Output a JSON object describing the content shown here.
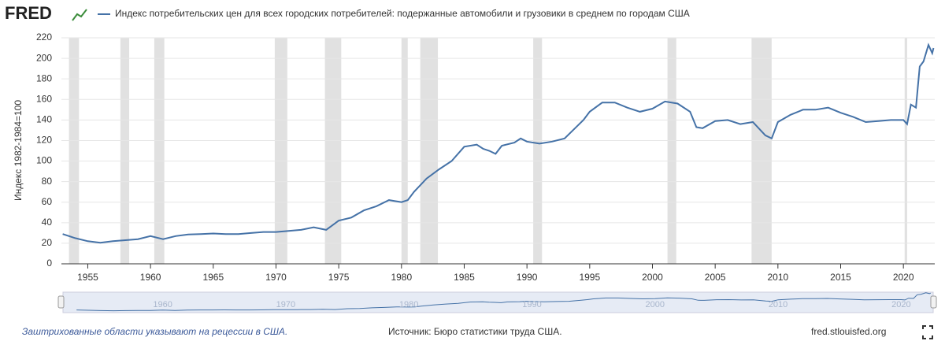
{
  "chart_data": {
    "type": "line",
    "logo": "FRED",
    "y_label": "Индекс 1982-1984=100",
    "note": "Заштрихованные области указывают на рецессии в США.",
    "source": "Источник: Бюро статистики труда США.",
    "site": "fred.stlouisfed.org",
    "grid": true,
    "xlim": [
      1952.9,
      2022.5
    ],
    "ylim": [
      0,
      220
    ],
    "xticks": [
      1955,
      1960,
      1965,
      1970,
      1975,
      1980,
      1985,
      1990,
      1995,
      2000,
      2005,
      2010,
      2015,
      2020
    ],
    "yticks": [
      0,
      20,
      40,
      60,
      80,
      100,
      120,
      140,
      160,
      180,
      200,
      220
    ],
    "navigator_xlim": [
      1951.9,
      2022.6
    ],
    "navigator_ticks": [
      1960,
      1970,
      1980,
      1990,
      2000,
      2010,
      2020
    ],
    "recessions": [
      [
        1953.5,
        1954.3
      ],
      [
        1957.6,
        1958.3
      ],
      [
        1960.3,
        1961.1
      ],
      [
        1969.9,
        1970.9
      ],
      [
        1973.9,
        1975.2
      ],
      [
        1980.0,
        1980.5
      ],
      [
        1981.5,
        1982.9
      ],
      [
        1990.5,
        1991.2
      ],
      [
        2001.2,
        2001.9
      ],
      [
        2007.9,
        2009.5
      ],
      [
        2020.1,
        2020.3
      ]
    ],
    "recession_color": "#e1e1e1",
    "x": [
      1953,
      1954,
      1955,
      1956,
      1957,
      1958,
      1959,
      1960,
      1961,
      1962,
      1963,
      1964,
      1965,
      1966,
      1967,
      1968,
      1969,
      1970,
      1971,
      1972,
      1973,
      1974,
      1975,
      1976,
      1977,
      1978,
      1979,
      1980,
      1980.5,
      1981,
      1982,
      1983,
      1984,
      1985,
      1986,
      1986.5,
      1987,
      1987.5,
      1988,
      1989,
      1989.5,
      1990,
      1991,
      1992,
      1993,
      1994,
      1994.5,
      1995,
      1996,
      1997,
      1998,
      1999,
      2000,
      2001,
      2002,
      2003,
      2003.5,
      2004,
      2005,
      2006,
      2007,
      2008,
      2009,
      2009.5,
      2010,
      2011,
      2012,
      2013,
      2014,
      2015,
      2016,
      2017,
      2018,
      2019,
      2020,
      2020.3,
      2020.6,
      2021,
      2021.3,
      2021.6,
      2022,
      2022.3,
      2022.4
    ],
    "series": [
      {
        "name": "Индекс потребительских цен для всех городских потребителей: подержанные автомобили и грузовики в среднем по городам США",
        "color": "#4572a7",
        "values": [
          29,
          25,
          22,
          20.5,
          22,
          23,
          24,
          27,
          24,
          27,
          28.5,
          29,
          29.5,
          29,
          29,
          30,
          31,
          31,
          32,
          33,
          35.5,
          33,
          42,
          45,
          52,
          56,
          62,
          60,
          62,
          70,
          83,
          92,
          100,
          114,
          116,
          112,
          110,
          107,
          115,
          118,
          122,
          119,
          117,
          119,
          122,
          134,
          140,
          148,
          157,
          157,
          152,
          148,
          151,
          158,
          156,
          148,
          133,
          132,
          139,
          140,
          136,
          138,
          125,
          122,
          138,
          145,
          150,
          150,
          152,
          147,
          143,
          138,
          139,
          140,
          140,
          136,
          155,
          152,
          192,
          197,
          213,
          205,
          210
        ]
      }
    ]
  }
}
